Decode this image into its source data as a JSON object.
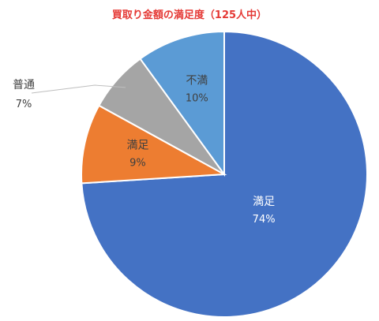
{
  "chart_data": {
    "type": "pie",
    "title": "買取り金額の満足度（125人中）",
    "start_angle_deg": 0,
    "direction": "clockwise",
    "slices": [
      {
        "label": "満足",
        "value": 74,
        "value_label": "74%",
        "color": "#4472C4",
        "text_color": "#ffffff",
        "label_placement": "inside"
      },
      {
        "label": "満足",
        "value": 9,
        "value_label": "9%",
        "color": "#ED7D31",
        "text_color": "#404040",
        "label_placement": "inside"
      },
      {
        "label": "普通",
        "value": 7,
        "value_label": "7%",
        "color": "#A5A5A5",
        "text_color": "#404040",
        "label_placement": "outside"
      },
      {
        "label": "不満",
        "value": 10,
        "value_label": "10%",
        "color": "#5B9BD5",
        "text_color": "#404040",
        "label_placement": "inside"
      }
    ]
  }
}
